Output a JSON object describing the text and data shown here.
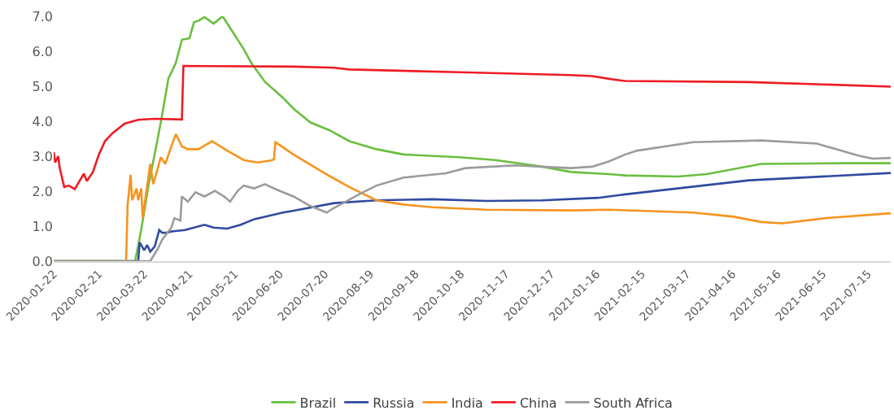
{
  "chart_data": {
    "type": "line",
    "xlim": [
      "2020-01-22",
      "2021-07-30"
    ],
    "xticks": [
      "2020-01-22",
      "2020-02-21",
      "2020-03-22",
      "2020-04-21",
      "2020-05-21",
      "2020-06-20",
      "2020-07-20",
      "2020-08-19",
      "2020-09-18",
      "2020-10-18",
      "2020-11-17",
      "2020-12-17",
      "2021-01-16",
      "2021-02-15",
      "2021-03-17",
      "2021-04-16",
      "2021-05-16",
      "2021-06-15",
      "2021-07-15"
    ],
    "ylim": [
      0,
      7.0
    ],
    "yticks": [
      {
        "value": 0,
        "label": "0.0"
      },
      {
        "value": 1,
        "label": "1.0"
      },
      {
        "value": 2,
        "label": "2.0"
      },
      {
        "value": 3,
        "label": "3.0"
      },
      {
        "value": 4,
        "label": "4.0"
      },
      {
        "value": 5,
        "label": "5.0"
      },
      {
        "value": 6,
        "label": "6.0"
      },
      {
        "value": 7,
        "label": "7.0"
      }
    ],
    "grid": false,
    "legend": "bottom",
    "line_style": "solid",
    "marker": "none",
    "series": [
      {
        "name": "Brazil",
        "color": "#6abf3f",
        "x": [
          "2020-01-22",
          "2020-03-16",
          "2020-03-20",
          "2020-03-25",
          "2020-03-31",
          "2020-04-03",
          "2020-04-07",
          "2020-04-12",
          "2020-04-16",
          "2020-04-21",
          "2020-04-24",
          "2020-04-27",
          "2020-05-01",
          "2020-05-07",
          "2020-05-13",
          "2020-05-19",
          "2020-05-27",
          "2020-06-01",
          "2020-06-10",
          "2020-06-22",
          "2020-06-29",
          "2020-07-10",
          "2020-07-23",
          "2020-08-05",
          "2020-08-23",
          "2020-09-10",
          "2020-10-17",
          "2020-11-10",
          "2020-12-11",
          "2020-12-30",
          "2021-01-24",
          "2021-02-04",
          "2021-03-11",
          "2021-03-30",
          "2021-05-05",
          "2021-06-30",
          "2021-07-30"
        ],
        "values": [
          0,
          0,
          0.89,
          2.2,
          3.51,
          4.2,
          5.21,
          5.67,
          6.33,
          6.37,
          6.83,
          6.87,
          6.98,
          6.79,
          7.0,
          6.6,
          6.06,
          5.67,
          5.13,
          4.67,
          4.36,
          3.97,
          3.74,
          3.43,
          3.2,
          3.05,
          2.97,
          2.89,
          2.7,
          2.55,
          2.49,
          2.45,
          2.42,
          2.49,
          2.78,
          2.8,
          2.8
        ]
      },
      {
        "name": "Russia",
        "color": "#2f4aa0",
        "x": [
          "2020-01-22",
          "2020-03-18",
          "2020-03-19",
          "2020-03-22",
          "2020-03-24",
          "2020-03-26",
          "2020-03-29",
          "2020-04-01",
          "2020-04-03",
          "2020-04-06",
          "2020-04-09",
          "2020-04-18",
          "2020-05-01",
          "2020-05-07",
          "2020-05-16",
          "2020-05-25",
          "2020-06-03",
          "2020-06-22",
          "2020-06-29",
          "2020-07-26",
          "2020-08-23",
          "2020-09-29",
          "2020-11-04",
          "2020-12-11",
          "2021-01-17",
          "2021-01-24",
          "2021-02-04",
          "2021-04-27",
          "2021-07-30"
        ],
        "values": [
          0,
          0,
          0.54,
          0.31,
          0.46,
          0.27,
          0.42,
          0.89,
          0.81,
          0.81,
          0.85,
          0.89,
          1.04,
          0.96,
          0.93,
          1.04,
          1.2,
          1.39,
          1.44,
          1.66,
          1.74,
          1.77,
          1.72,
          1.74,
          1.81,
          1.85,
          1.91,
          2.31,
          2.52
        ]
      },
      {
        "name": "India",
        "color": "#f7931e",
        "x": [
          "2020-01-22",
          "2020-03-10",
          "2020-03-11",
          "2020-03-13",
          "2020-03-14",
          "2020-03-17",
          "2020-03-18",
          "2020-03-20",
          "2020-03-21",
          "2020-03-26",
          "2020-03-28",
          "2020-04-02",
          "2020-04-05",
          "2020-04-09",
          "2020-04-12",
          "2020-04-16",
          "2020-04-20",
          "2020-04-27",
          "2020-05-06",
          "2020-05-16",
          "2020-05-27",
          "2020-06-05",
          "2020-06-14",
          "2020-06-16",
          "2020-06-17",
          "2020-06-29",
          "2020-07-23",
          "2020-08-05",
          "2020-08-23",
          "2020-09-10",
          "2020-09-29",
          "2020-11-04",
          "2020-12-30",
          "2021-01-24",
          "2021-03-21",
          "2021-04-17",
          "2021-05-05",
          "2021-05-19",
          "2021-06-17",
          "2021-07-30"
        ],
        "values": [
          0,
          0,
          1.6,
          2.47,
          1.74,
          2.08,
          1.74,
          2.08,
          1.23,
          2.78,
          2.2,
          2.97,
          2.78,
          3.28,
          3.63,
          3.28,
          3.2,
          3.2,
          3.43,
          3.16,
          2.89,
          2.82,
          2.88,
          2.91,
          3.4,
          3.05,
          2.43,
          2.12,
          1.74,
          1.62,
          1.54,
          1.47,
          1.45,
          1.47,
          1.39,
          1.27,
          1.12,
          1.08,
          1.23,
          1.37
        ]
      },
      {
        "name": "China",
        "color": "#ed1c24",
        "x": [
          "2020-01-22",
          "2020-01-23",
          "2020-01-25",
          "2020-01-26",
          "2020-01-29",
          "2020-02-01",
          "2020-02-05",
          "2020-02-08",
          "2020-02-11",
          "2020-02-13",
          "2020-02-17",
          "2020-02-21",
          "2020-02-25",
          "2020-03-01",
          "2020-03-09",
          "2020-03-18",
          "2020-03-29",
          "2020-04-16",
          "2020-04-17",
          "2020-06-29",
          "2020-07-26",
          "2020-08-05",
          "2020-10-17",
          "2020-12-29",
          "2021-01-13",
          "2021-01-26",
          "2021-02-04",
          "2021-04-27",
          "2021-07-30"
        ],
        "values": [
          3.12,
          2.82,
          3.0,
          2.66,
          2.12,
          2.16,
          2.06,
          2.28,
          2.5,
          2.29,
          2.55,
          3.05,
          3.43,
          3.66,
          3.93,
          4.04,
          4.07,
          4.05,
          5.58,
          5.56,
          5.53,
          5.48,
          5.4,
          5.32,
          5.29,
          5.2,
          5.15,
          5.12,
          4.99
        ]
      },
      {
        "name": "South Africa",
        "color": "#9b9b9b",
        "x": [
          "2020-01-22",
          "2020-03-26",
          "2020-03-31",
          "2020-04-03",
          "2020-04-09",
          "2020-04-11",
          "2020-04-15",
          "2020-04-16",
          "2020-04-20",
          "2020-04-25",
          "2020-05-01",
          "2020-05-08",
          "2020-05-14",
          "2020-05-18",
          "2020-05-23",
          "2020-05-27",
          "2020-06-03",
          "2020-06-10",
          "2020-06-18",
          "2020-06-29",
          "2020-07-10",
          "2020-07-21",
          "2020-07-25",
          "2020-08-14",
          "2020-08-23",
          "2020-09-10",
          "2020-10-08",
          "2020-10-21",
          "2020-11-23",
          "2020-12-30",
          "2021-01-13",
          "2021-01-24",
          "2021-02-04",
          "2021-02-12",
          "2021-03-21",
          "2021-05-05",
          "2021-06-11",
          "2021-07-09",
          "2021-07-18",
          "2021-07-30"
        ],
        "values": [
          0,
          0,
          0.35,
          0.62,
          0.96,
          1.23,
          1.16,
          1.85,
          1.7,
          1.97,
          1.85,
          2.01,
          1.85,
          1.7,
          2.01,
          2.16,
          2.08,
          2.2,
          2.04,
          1.85,
          1.58,
          1.39,
          1.5,
          1.97,
          2.16,
          2.39,
          2.51,
          2.66,
          2.74,
          2.66,
          2.7,
          2.85,
          3.05,
          3.16,
          3.4,
          3.45,
          3.36,
          3.01,
          2.93,
          2.95
        ]
      }
    ]
  }
}
